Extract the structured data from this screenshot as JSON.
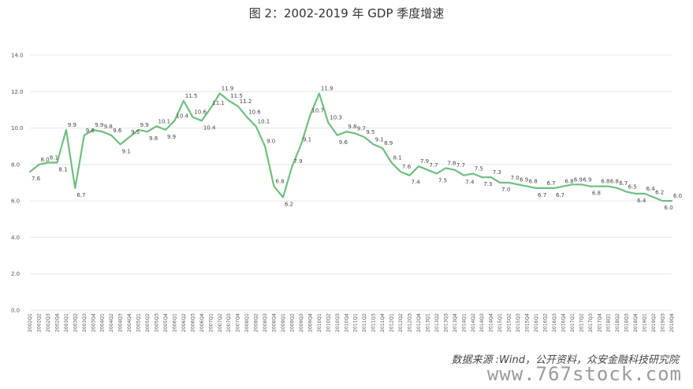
{
  "title": "图 2：2002-2019 年 GDP 季度增速",
  "source": "数据来源 :Wind，公开资料，众安金融科技研究院",
  "watermark": "www.767stock.com",
  "chart_data": {
    "type": "line",
    "title": "图 2：2002-2019 年 GDP 季度增速",
    "xlabel": "",
    "ylabel": "",
    "ylim": [
      0,
      14
    ],
    "yticks": [
      "0.0",
      "2.0",
      "4.0",
      "6.0",
      "8.0",
      "10.0",
      "12.0",
      "14.0"
    ],
    "grid": true,
    "line_color": "#6fbf7f",
    "categories": [
      "2002Q1",
      "2002Q2",
      "2002Q3",
      "2002Q4",
      "2003Q1",
      "2003Q2",
      "2003Q3",
      "2003Q4",
      "2004Q1",
      "2004Q2",
      "2004Q3",
      "2004Q4",
      "2005Q1",
      "2005Q2",
      "2005Q3",
      "2005Q4",
      "2006Q1",
      "2006Q2",
      "2006Q3",
      "2006Q4",
      "2007Q1",
      "2007Q2",
      "2007Q3",
      "2007Q4",
      "2008Q1",
      "2008Q2",
      "2008Q3",
      "2008Q4",
      "2009Q1",
      "2009Q2",
      "2009Q3",
      "2009Q4",
      "2010Q1",
      "2010Q2",
      "2010Q3",
      "2010Q4",
      "2011Q1",
      "2011Q2",
      "2011Q3",
      "2011Q4",
      "2012Q1",
      "2012Q2",
      "2012Q3",
      "2012Q4",
      "2013Q1",
      "2013Q2",
      "2013Q3",
      "2013Q4",
      "2014Q1",
      "2014Q2",
      "2014Q3",
      "2014Q4",
      "2015Q1",
      "2015Q2",
      "2015Q3",
      "2015Q4",
      "2016Q1",
      "2016Q2",
      "2016Q3",
      "2016Q4",
      "2017Q1",
      "2017Q2",
      "2017Q3",
      "2017Q4",
      "2018Q1",
      "2018Q2",
      "2018Q3",
      "2018Q4",
      "2019Q1",
      "2019Q2",
      "2019Q3",
      "2019Q4"
    ],
    "values": [
      7.6,
      8.0,
      8.1,
      8.1,
      9.9,
      6.7,
      9.6,
      9.9,
      9.8,
      9.6,
      9.1,
      9.5,
      9.9,
      9.8,
      10.1,
      9.9,
      10.4,
      11.5,
      10.6,
      10.4,
      11.1,
      11.9,
      11.5,
      11.2,
      10.6,
      10.1,
      9.0,
      6.8,
      6.2,
      7.9,
      9.1,
      10.7,
      11.9,
      10.3,
      9.6,
      9.8,
      9.7,
      9.5,
      9.1,
      8.9,
      8.1,
      7.6,
      7.4,
      7.9,
      7.7,
      7.5,
      7.8,
      7.7,
      7.4,
      7.5,
      7.3,
      7.3,
      7.0,
      7.0,
      6.9,
      6.8,
      6.7,
      6.7,
      6.7,
      6.8,
      6.9,
      6.9,
      6.8,
      6.8,
      6.8,
      6.7,
      6.5,
      6.4,
      6.4,
      6.2,
      6.0,
      6.0
    ],
    "labels": [
      "7.6",
      "8.0",
      "8.1",
      "8.1",
      "9.9",
      "6.7",
      "9.6",
      "9.9",
      "9.8",
      "9.6",
      "9.1",
      "9.5",
      "9.9",
      "9.8",
      "10.1",
      "9.9",
      "10.4",
      "11.5",
      "10.6",
      "10.4",
      "11.1",
      "11.9",
      "11.5",
      "11.2",
      "10.6",
      "10.1",
      "9.0",
      "6.8",
      "6.2",
      "7.9",
      "9.1",
      "10.7",
      "11.9",
      "10.3",
      "9.6",
      "9.8",
      "9.7",
      "9.5",
      "9.1",
      "8.9",
      "8.1",
      "7.6",
      "7.4",
      "7.9",
      "7.7",
      "7.5",
      "7.8",
      "7.7",
      "7.4",
      "7.5",
      "7.3",
      "7.3",
      "7.0",
      "7.0",
      "6.9",
      "6.8",
      "6.7",
      "6.7",
      "6.7",
      "6.8",
      "6.9",
      "6.9",
      "6.8",
      "6.8",
      "6.8",
      "6.7",
      "6.5",
      "6.4",
      "6.4",
      "6.2",
      "6.0",
      "6.0"
    ]
  }
}
